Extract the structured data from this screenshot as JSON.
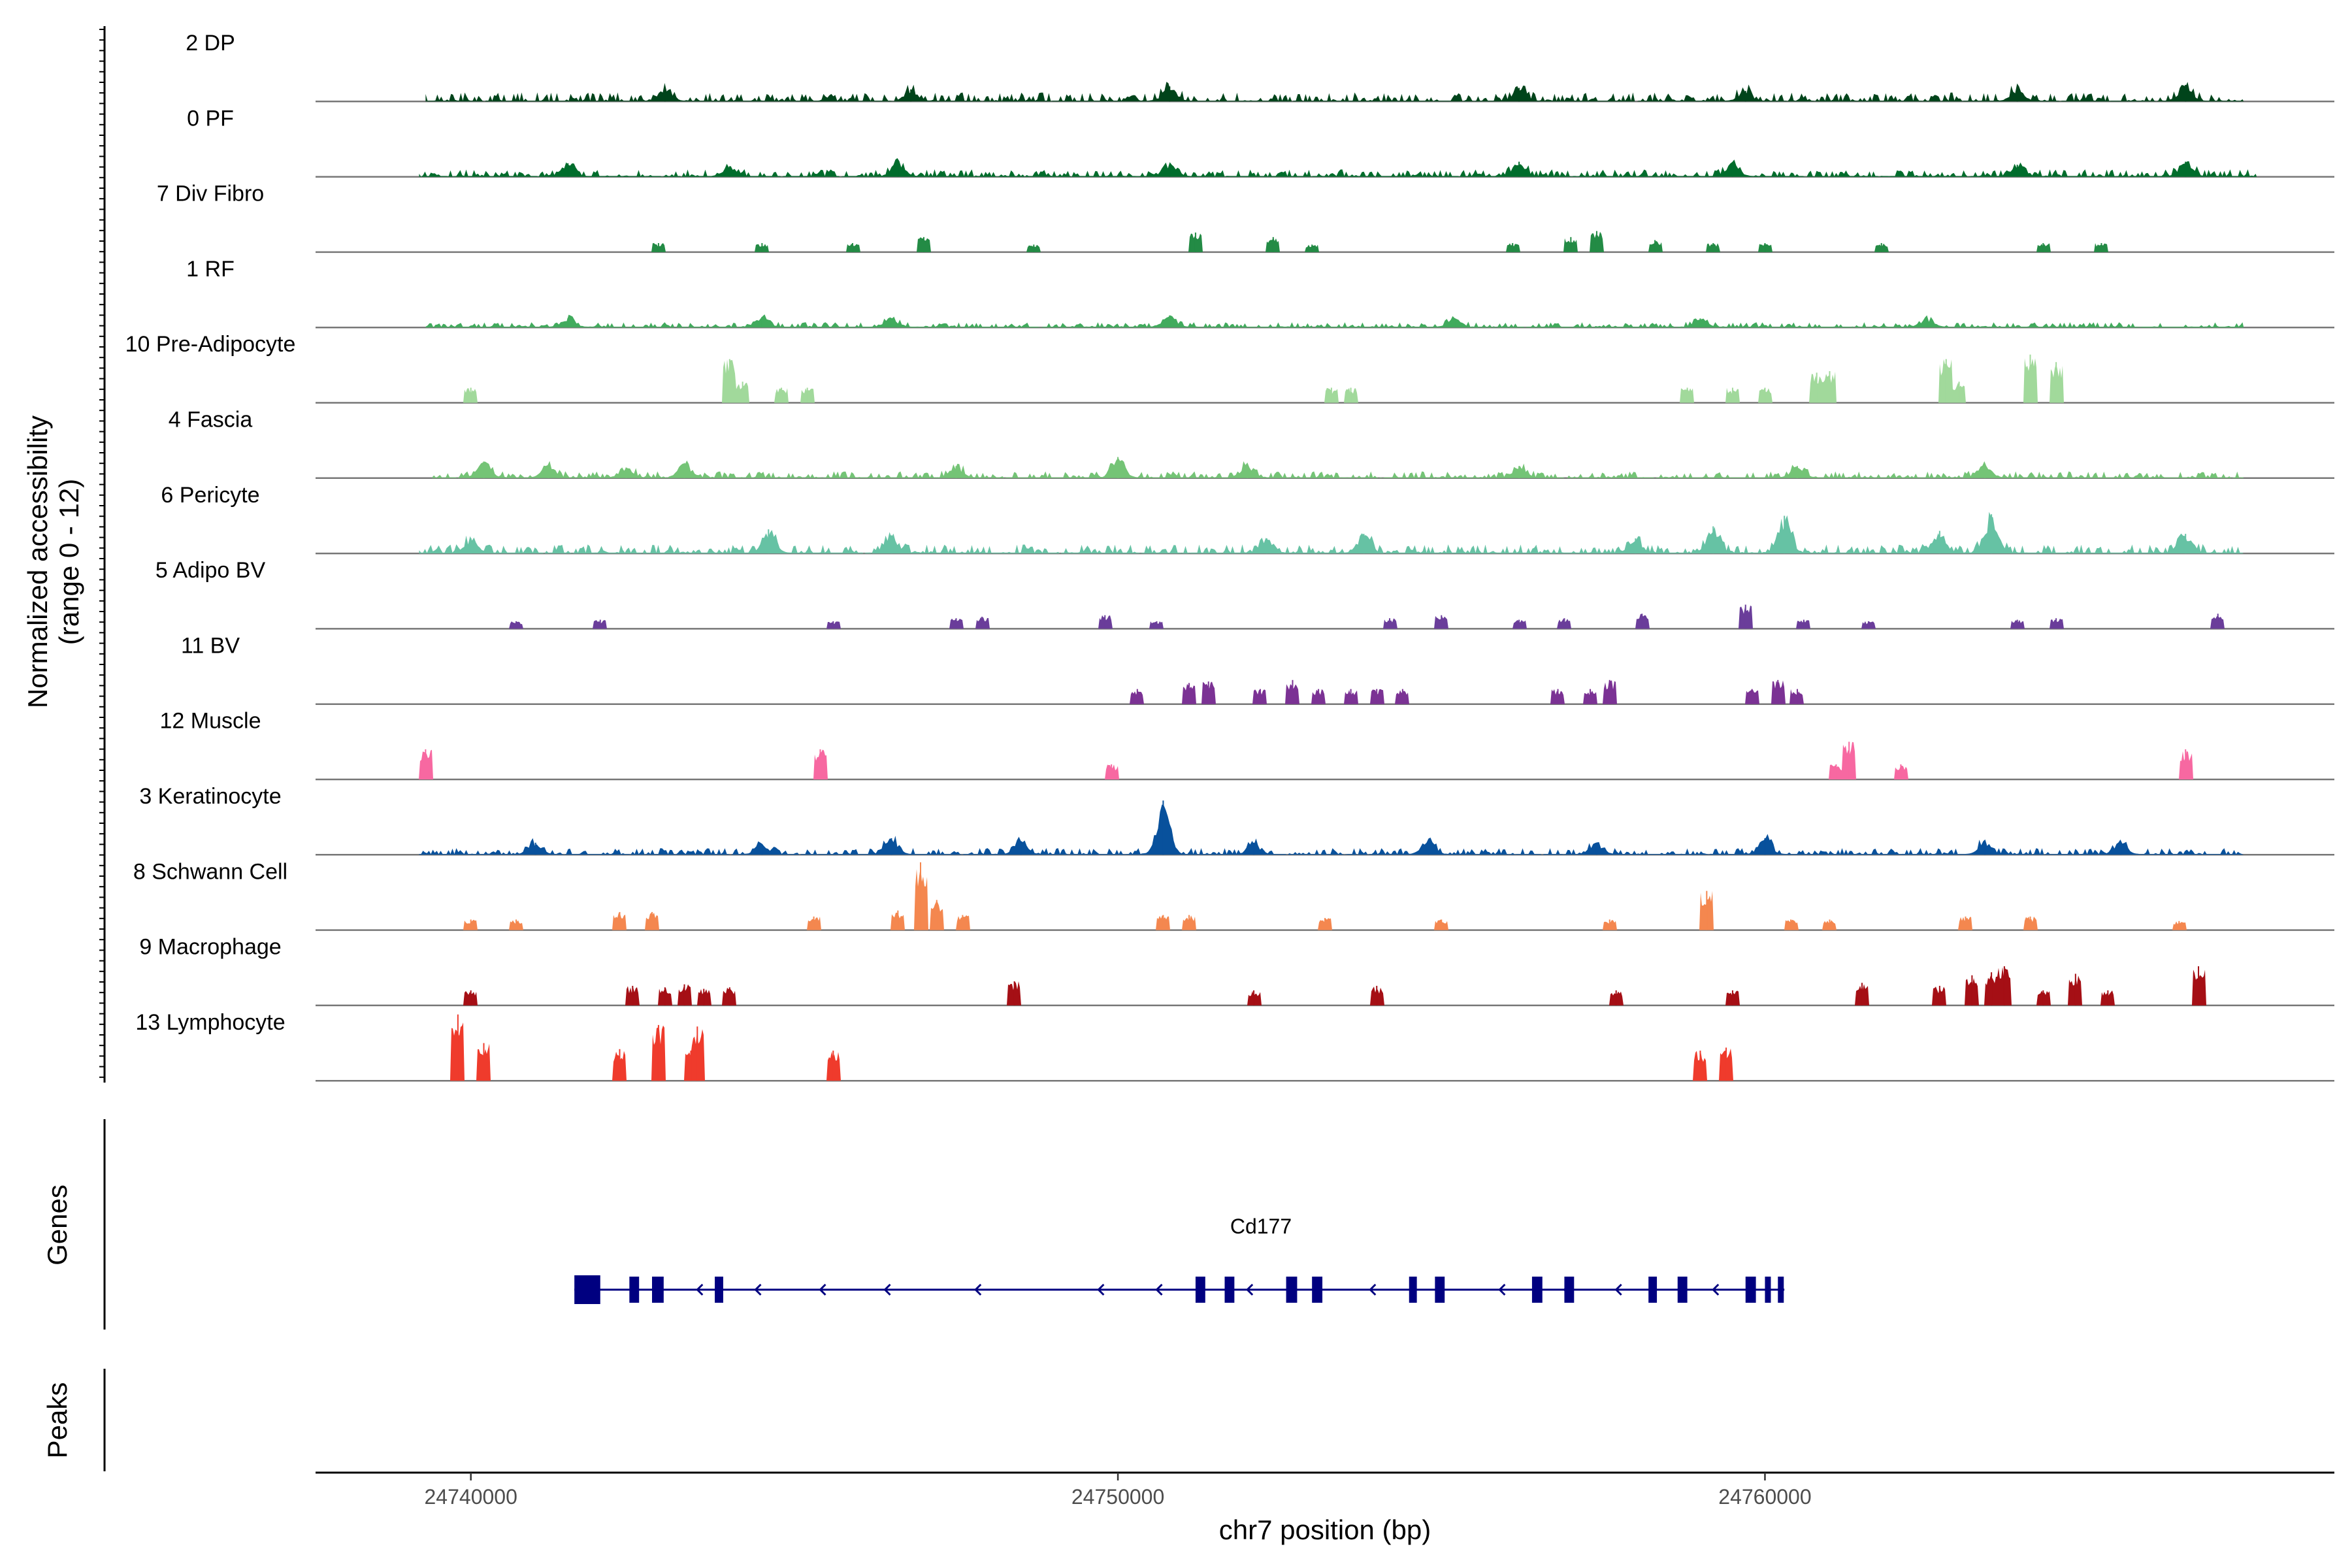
{
  "chart_data": {
    "type": "area",
    "title": "",
    "ylabel_line1": "Normalized accessibility",
    "ylabel_line2": "(range 0 - 12)",
    "yrange": [
      0,
      12
    ],
    "xlabel": "chr7 position (bp)",
    "xlim": [
      24737600,
      24768800
    ],
    "xticks": [
      24740000,
      24750000,
      24760000
    ],
    "xtick_labels": [
      "24740000",
      "24750000",
      "24760000"
    ],
    "tracks": [
      {
        "name": "2 DP",
        "color": "#00441b",
        "style": "broad",
        "range": [
          24739300,
          24767400
        ],
        "height": 0.6,
        "bumps": [
          [
            24743000,
            0.9
          ],
          [
            24746800,
            0.8
          ],
          [
            24750800,
            1.0
          ],
          [
            24756200,
            0.9
          ],
          [
            24759700,
            0.7
          ],
          [
            24763900,
            0.8
          ],
          [
            24766500,
            1.1
          ]
        ]
      },
      {
        "name": "0 PF",
        "color": "#006d2c",
        "style": "broad",
        "range": [
          24739200,
          24767600
        ],
        "height": 0.5,
        "bumps": [
          [
            24741500,
            0.9
          ],
          [
            24744000,
            0.7
          ],
          [
            24746600,
            1.0
          ],
          [
            24750800,
            0.8
          ],
          [
            24756200,
            1.0
          ],
          [
            24759500,
            0.9
          ],
          [
            24763900,
            0.8
          ],
          [
            24766500,
            1.0
          ]
        ]
      },
      {
        "name": "7 Div Fibro",
        "color": "#238b45",
        "style": "sparse",
        "peaks": [
          [
            24742900,
            0.6
          ],
          [
            24744500,
            0.6
          ],
          [
            24745900,
            0.6
          ],
          [
            24747000,
            1.0
          ],
          [
            24748700,
            0.5
          ],
          [
            24751200,
            1.3
          ],
          [
            24752400,
            1.0
          ],
          [
            24753000,
            0.5
          ],
          [
            24756100,
            0.6
          ],
          [
            24757000,
            1.0
          ],
          [
            24757400,
            1.4
          ],
          [
            24758300,
            0.8
          ],
          [
            24759200,
            0.6
          ],
          [
            24760000,
            0.6
          ],
          [
            24761800,
            0.6
          ],
          [
            24764300,
            0.6
          ],
          [
            24765200,
            0.6
          ]
        ]
      },
      {
        "name": "1 RF",
        "color": "#41ab5d",
        "style": "broad",
        "range": [
          24739300,
          24767400
        ],
        "height": 0.35,
        "bumps": [
          [
            24741500,
            0.6
          ],
          [
            24744500,
            0.7
          ],
          [
            24746500,
            0.6
          ],
          [
            24750800,
            0.8
          ],
          [
            24755200,
            0.6
          ],
          [
            24759000,
            0.6
          ],
          [
            24762500,
            0.6
          ]
        ]
      },
      {
        "name": "10 Pre-Adipocyte",
        "color": "#a1d99b",
        "style": "sparse",
        "peaks": [
          [
            24740000,
            1.0
          ],
          [
            24744000,
            2.9
          ],
          [
            24744200,
            1.4
          ],
          [
            24744800,
            1.0
          ],
          [
            24745200,
            1.0
          ],
          [
            24753300,
            1.0
          ],
          [
            24753600,
            1.0
          ],
          [
            24758800,
            1.0
          ],
          [
            24759500,
            1.0
          ],
          [
            24760000,
            1.0
          ],
          [
            24760800,
            2.0
          ],
          [
            24761000,
            2.1
          ],
          [
            24762800,
            2.9
          ],
          [
            24763000,
            1.4
          ],
          [
            24764100,
            3.2
          ],
          [
            24764500,
            2.7
          ]
        ]
      },
      {
        "name": "4 Fascia",
        "color": "#74c476",
        "style": "broad",
        "range": [
          24739400,
          24767400
        ],
        "height": 0.45,
        "bumps": [
          [
            24740200,
            1.1
          ],
          [
            24741200,
            0.9
          ],
          [
            24742400,
            0.7
          ],
          [
            24743300,
            1.0
          ],
          [
            24747500,
            0.8
          ],
          [
            24750000,
            1.4
          ],
          [
            24752000,
            0.9
          ],
          [
            24756200,
            0.8
          ],
          [
            24760500,
            0.8
          ],
          [
            24763400,
            0.9
          ]
        ]
      },
      {
        "name": "6 Pericyte",
        "color": "#66c2a4",
        "style": "broad",
        "range": [
          24739200,
          24767400
        ],
        "height": 0.6,
        "bumps": [
          [
            24740000,
            1.0
          ],
          [
            24744600,
            1.6
          ],
          [
            24746500,
            1.2
          ],
          [
            24752300,
            1.0
          ],
          [
            24753800,
            1.3
          ],
          [
            24758000,
            1.0
          ],
          [
            24759200,
            1.8
          ],
          [
            24760300,
            2.5
          ],
          [
            24762700,
            1.5
          ],
          [
            24763500,
            2.6
          ],
          [
            24766500,
            1.3
          ]
        ]
      },
      {
        "name": "5 Adipo BV",
        "color": "#6a3d9a",
        "style": "sparse",
        "peaks": [
          [
            24740700,
            0.5
          ],
          [
            24742000,
            0.6
          ],
          [
            24745600,
            0.5
          ],
          [
            24747500,
            0.7
          ],
          [
            24747900,
            0.8
          ],
          [
            24749800,
            0.9
          ],
          [
            24750600,
            0.5
          ],
          [
            24754200,
            0.7
          ],
          [
            24755000,
            0.9
          ],
          [
            24756200,
            0.6
          ],
          [
            24756900,
            0.7
          ],
          [
            24758100,
            1.0
          ],
          [
            24759700,
            1.6
          ],
          [
            24760600,
            0.6
          ],
          [
            24761600,
            0.5
          ],
          [
            24763900,
            0.6
          ],
          [
            24764500,
            0.7
          ],
          [
            24767000,
            1.0
          ]
        ]
      },
      {
        "name": "11 BV",
        "color": "#7b3294",
        "style": "sparse",
        "peaks": [
          [
            24750300,
            1.0
          ],
          [
            24751100,
            1.4
          ],
          [
            24751400,
            1.5
          ],
          [
            24752200,
            1.0
          ],
          [
            24752700,
            1.6
          ],
          [
            24753100,
            1.0
          ],
          [
            24753600,
            1.0
          ],
          [
            24754000,
            1.0
          ],
          [
            24754400,
            1.0
          ],
          [
            24756800,
            1.0
          ],
          [
            24757300,
            1.0
          ],
          [
            24757600,
            1.6
          ],
          [
            24759800,
            1.0
          ],
          [
            24760200,
            1.6
          ],
          [
            24760500,
            1.0
          ]
        ]
      },
      {
        "name": "12 Muscle",
        "color": "#f768a1",
        "style": "sparse",
        "peaks": [
          [
            24739300,
            2.0
          ],
          [
            24745400,
            2.0
          ],
          [
            24749900,
            1.0
          ],
          [
            24761100,
            1.0
          ],
          [
            24761300,
            2.5
          ],
          [
            24762100,
            1.0
          ],
          [
            24766500,
            2.0
          ]
        ]
      },
      {
        "name": "3 Keratinocyte",
        "color": "#08519c",
        "style": "broad",
        "range": [
          24739200,
          24767400
        ],
        "height": 0.45,
        "bumps": [
          [
            24741000,
            0.8
          ],
          [
            24744500,
            0.7
          ],
          [
            24746500,
            1.1
          ],
          [
            24748500,
            0.9
          ],
          [
            24750700,
            3.6
          ],
          [
            24752100,
            0.8
          ],
          [
            24754800,
            1.0
          ],
          [
            24757400,
            0.8
          ],
          [
            24760000,
            1.1
          ],
          [
            24763400,
            0.9
          ],
          [
            24765500,
            0.8
          ]
        ]
      },
      {
        "name": "8 Schwann Cell",
        "color": "#f4874f",
        "style": "sparse",
        "peaks": [
          [
            24740000,
            0.7
          ],
          [
            24740700,
            0.7
          ],
          [
            24742300,
            1.2
          ],
          [
            24742800,
            1.2
          ],
          [
            24745300,
            0.9
          ],
          [
            24746600,
            1.3
          ],
          [
            24746950,
            4.5
          ],
          [
            24747200,
            2.0
          ],
          [
            24747600,
            1.0
          ],
          [
            24750700,
            1.0
          ],
          [
            24751100,
            1.0
          ],
          [
            24753200,
            0.8
          ],
          [
            24755000,
            0.7
          ],
          [
            24757600,
            0.7
          ],
          [
            24759100,
            2.6
          ],
          [
            24760400,
            0.7
          ],
          [
            24761000,
            0.7
          ],
          [
            24763100,
            0.9
          ],
          [
            24764100,
            0.9
          ],
          [
            24766400,
            0.6
          ]
        ]
      },
      {
        "name": "9 Macrophage",
        "color": "#a50f15",
        "style": "sparse",
        "peaks": [
          [
            24740000,
            1.0
          ],
          [
            24742500,
            1.3
          ],
          [
            24743000,
            1.2
          ],
          [
            24743300,
            1.4
          ],
          [
            24743600,
            1.1
          ],
          [
            24744000,
            1.2
          ],
          [
            24748400,
            1.6
          ],
          [
            24752100,
            1.0
          ],
          [
            24754000,
            1.3
          ],
          [
            24757700,
            1.0
          ],
          [
            24759500,
            1.0
          ],
          [
            24761500,
            1.5
          ],
          [
            24762700,
            1.3
          ],
          [
            24763200,
            2.0
          ],
          [
            24763500,
            2.2
          ],
          [
            24763700,
            2.6
          ],
          [
            24764300,
            1.0
          ],
          [
            24764800,
            2.1
          ],
          [
            24765300,
            1.0
          ],
          [
            24766700,
            2.6
          ]
        ]
      },
      {
        "name": "13 Lymphocyte",
        "color": "#ef3b2c",
        "style": "sparse",
        "peaks": [
          [
            24739800,
            4.4
          ],
          [
            24740200,
            2.5
          ],
          [
            24742300,
            2.1
          ],
          [
            24742900,
            3.7
          ],
          [
            24743400,
            2.0
          ],
          [
            24743500,
            3.6
          ],
          [
            24745600,
            2.0
          ],
          [
            24759000,
            2.0
          ],
          [
            24759400,
            2.2
          ]
        ]
      }
    ],
    "gene": {
      "name": "Cd177",
      "strand": "-",
      "start": 24741600,
      "end": 24760300,
      "exons": [
        [
          24741600,
          24742000
        ],
        [
          24742450,
          24742600
        ],
        [
          24742800,
          24742980
        ],
        [
          24743770,
          24743900
        ],
        [
          24751200,
          24751350
        ],
        [
          24751650,
          24751800
        ],
        [
          24752600,
          24752770
        ],
        [
          24753000,
          24753160
        ],
        [
          24754500,
          24754620
        ],
        [
          24754900,
          24755050
        ],
        [
          24756400,
          24756560
        ],
        [
          24756900,
          24757050
        ],
        [
          24758200,
          24758330
        ],
        [
          24758650,
          24758800
        ],
        [
          24759700,
          24759860
        ],
        [
          24760000,
          24760080
        ],
        [
          24760200,
          24760280
        ]
      ],
      "direction_arrows": [
        24743500,
        24744400,
        24745400,
        24746400,
        24747800,
        24749700,
        24750600,
        24752000,
        24753900,
        24755900,
        24756900,
        24757700,
        24759200
      ]
    },
    "panel_labels": {
      "genes": "Genes",
      "peaks": "Peaks"
    }
  }
}
